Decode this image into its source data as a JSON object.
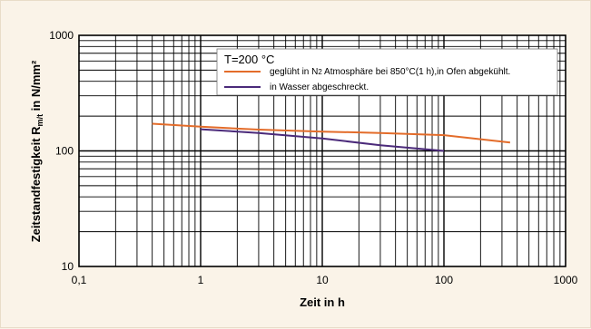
{
  "chart_data": {
    "type": "line",
    "x_scale": "log",
    "y_scale": "log",
    "xlim": [
      0.1,
      1000
    ],
    "ylim": [
      10,
      1000
    ],
    "x_ticks": [
      "0,1",
      "1",
      "10",
      "100",
      "1000"
    ],
    "y_ticks": [
      "10",
      "100",
      "1000"
    ],
    "xlabel": "Zeit in h",
    "ylabel_main": "Zeitstandfestigkeit R",
    "ylabel_sub": "m/t",
    "ylabel_unit": " in N/mm²",
    "grid": true,
    "legend_placement": "top-right",
    "legend_title": "T=200 °C",
    "series": [
      {
        "name_before": "geglüht in N",
        "name_sub": "2",
        "name_after": " Atmosphäre bei 850°C(1 h),in Ofen abgekühlt.",
        "color": "#e36c2a",
        "x": [
          0.4,
          1,
          3,
          10,
          30,
          100,
          350
        ],
        "y": [
          172,
          162,
          153,
          147,
          143,
          137,
          118
        ]
      },
      {
        "name": "in Wasser abgeschreckt.",
        "color": "#4b2a7a",
        "x": [
          1,
          3,
          10,
          30,
          100
        ],
        "y": [
          154,
          143,
          128,
          112,
          100
        ]
      }
    ]
  }
}
